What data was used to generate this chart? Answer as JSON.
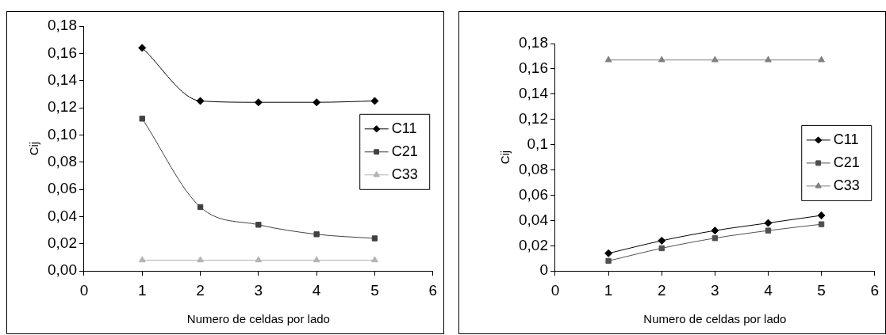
{
  "chart_data": [
    {
      "type": "line",
      "xlabel": "Numero de celdas por lado",
      "ylabel": "Cij",
      "x": [
        1,
        2,
        3,
        4,
        5
      ],
      "xlim": [
        0,
        6
      ],
      "xticks": [
        0,
        1,
        2,
        3,
        4,
        5,
        6
      ],
      "ylim": [
        0,
        0.18
      ],
      "yticks": [
        {
          "value": 0,
          "label": "0,00"
        },
        {
          "value": 0.02,
          "label": "0,02"
        },
        {
          "value": 0.04,
          "label": "0,04"
        },
        {
          "value": 0.06,
          "label": "0,06"
        },
        {
          "value": 0.08,
          "label": "0,08"
        },
        {
          "value": 0.1,
          "label": "0,10"
        },
        {
          "value": 0.12,
          "label": "0,12"
        },
        {
          "value": 0.14,
          "label": "0,14"
        },
        {
          "value": 0.16,
          "label": "0,16"
        },
        {
          "value": 0.18,
          "label": "0,18"
        }
      ],
      "grid": false,
      "legend": "right",
      "series": [
        {
          "name": "C11",
          "color": "#000000",
          "marker": "diamond",
          "values": [
            0.164,
            0.125,
            0.124,
            0.124,
            0.125
          ]
        },
        {
          "name": "C21",
          "color": "#404040",
          "marker": "square",
          "values": [
            0.112,
            0.047,
            0.034,
            0.027,
            0.024
          ]
        },
        {
          "name": "C33",
          "color": "#b3b3b3",
          "marker": "triangle",
          "values": [
            0.008,
            0.008,
            0.008,
            0.008,
            0.008
          ]
        }
      ]
    },
    {
      "type": "line",
      "xlabel": "Numero de celdas por lado",
      "ylabel": "Cij",
      "x": [
        1,
        2,
        3,
        4,
        5
      ],
      "xlim": [
        0,
        6
      ],
      "xticks": [
        0,
        1,
        2,
        3,
        4,
        5,
        6
      ],
      "ylim": [
        0,
        0.18
      ],
      "yticks": [
        0,
        {
          "value": 0.02,
          "label": "0,02"
        },
        {
          "value": 0.04,
          "label": "0,04"
        },
        {
          "value": 0.06,
          "label": "0,06"
        },
        {
          "value": 0.08,
          "label": "0,08"
        },
        {
          "value": 0.1,
          "label": "0,1"
        },
        {
          "value": 0.12,
          "label": "0,12"
        },
        {
          "value": 0.14,
          "label": "0,14"
        },
        {
          "value": 0.16,
          "label": "0,16"
        },
        {
          "value": 0.18,
          "label": "0,18"
        }
      ],
      "grid": false,
      "legend": "right",
      "series": [
        {
          "name": "C11",
          "color": "#000000",
          "marker": "diamond",
          "values": [
            0.014,
            0.024,
            0.032,
            0.038,
            0.044
          ]
        },
        {
          "name": "C21",
          "color": "#505050",
          "marker": "square",
          "values": [
            0.008,
            0.018,
            0.026,
            0.032,
            0.037
          ]
        },
        {
          "name": "C33",
          "color": "#808080",
          "marker": "triangle",
          "values": [
            0.167,
            0.167,
            0.167,
            0.167,
            0.167
          ]
        }
      ]
    }
  ]
}
